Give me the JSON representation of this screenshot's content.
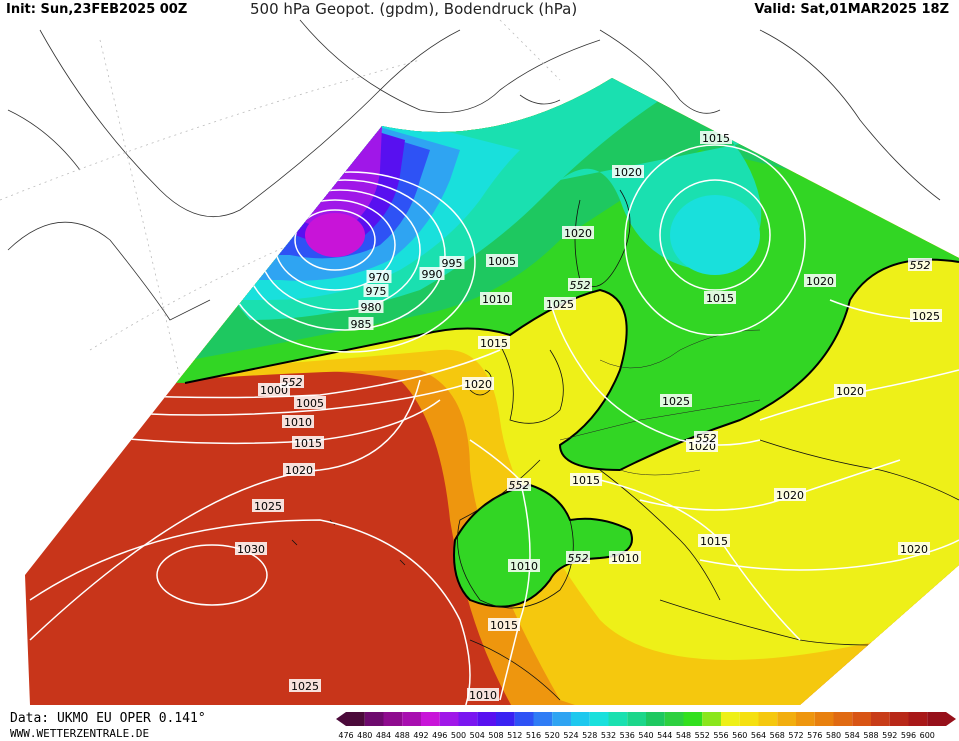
{
  "header": {
    "init": "Init: Sun,23FEB2025 00Z",
    "title": "500 hPa Geopot. (gpdm), Bodendruck (hPa)",
    "valid": "Valid: Sat,01MAR2025 18Z"
  },
  "footer": {
    "data_source": "Data: UKMO EU OPER 0.141°",
    "website": "WWW.WETTERZENTRALE.DE"
  },
  "scale": {
    "values": [
      "476",
      "480",
      "484",
      "488",
      "492",
      "496",
      "500",
      "504",
      "508",
      "512",
      "516",
      "520",
      "524",
      "528",
      "532",
      "536",
      "540",
      "544",
      "548",
      "552",
      "556",
      "560",
      "564",
      "568",
      "572",
      "576",
      "580",
      "584",
      "588",
      "592",
      "596",
      "600"
    ],
    "colors": [
      "#4b0a3a",
      "#6d0a6d",
      "#8e0b8e",
      "#a80eb0",
      "#c814d8",
      "#a017e8",
      "#7a16f0",
      "#5810f0",
      "#3a22f2",
      "#2e52f5",
      "#2f7cf5",
      "#2fa4f2",
      "#1ec8ee",
      "#19e0dc",
      "#1ae0b0",
      "#1cd68a",
      "#1ec860",
      "#2dd040",
      "#32e01e",
      "#8ae61c",
      "#eef018",
      "#f5e010",
      "#f5c80e",
      "#f2ae0e",
      "#ee960e",
      "#e8800e",
      "#e06a12",
      "#d85414",
      "#c83c18",
      "#b82818",
      "#a81818",
      "#96101a"
    ]
  },
  "map": {
    "colors": {
      "z_588": "#c8351a",
      "z_580": "#e06a12",
      "z_572": "#ee960e",
      "z_564": "#f5c80e",
      "z_556": "#eef018",
      "z_below_552": "#32d624",
      "z_544": "#1ec860",
      "z_536": "#1ae0b0",
      "z_528": "#19e0dc",
      "z_520": "#2fa4f2",
      "z_512": "#2e52f5",
      "z_504": "#5810f0",
      "z_496": "#a017e8",
      "z_488": "#c814d8"
    },
    "pressure_labels": [
      {
        "text": "1015"
      },
      {
        "text": "1020"
      },
      {
        "text": "1020"
      },
      {
        "text": "1005"
      },
      {
        "text": "995"
      },
      {
        "text": "990"
      },
      {
        "text": "970"
      },
      {
        "text": "975"
      },
      {
        "text": "980"
      },
      {
        "text": "985"
      },
      {
        "text": "1010"
      },
      {
        "text": "1025"
      },
      {
        "text": "1015"
      },
      {
        "text": "1020"
      },
      {
        "text": "1015"
      },
      {
        "text": "1020"
      },
      {
        "text": "1025"
      },
      {
        "text": "1000"
      },
      {
        "text": "1005"
      },
      {
        "text": "1010"
      },
      {
        "text": "1015"
      },
      {
        "text": "1020"
      },
      {
        "text": "1025"
      },
      {
        "text": "1030"
      },
      {
        "text": "1025"
      },
      {
        "text": "1010"
      },
      {
        "text": "1015"
      },
      {
        "text": "1010"
      },
      {
        "text": "1010"
      },
      {
        "text": "1015"
      },
      {
        "text": "1025"
      },
      {
        "text": "1020"
      },
      {
        "text": "1020"
      },
      {
        "text": "1020"
      },
      {
        "text": "1015"
      },
      {
        "text": "1020"
      }
    ],
    "height_labels": [
      {
        "text": "552"
      },
      {
        "text": "552"
      },
      {
        "text": "552"
      },
      {
        "text": "552"
      },
      {
        "text": "552"
      },
      {
        "text": "552"
      }
    ]
  }
}
